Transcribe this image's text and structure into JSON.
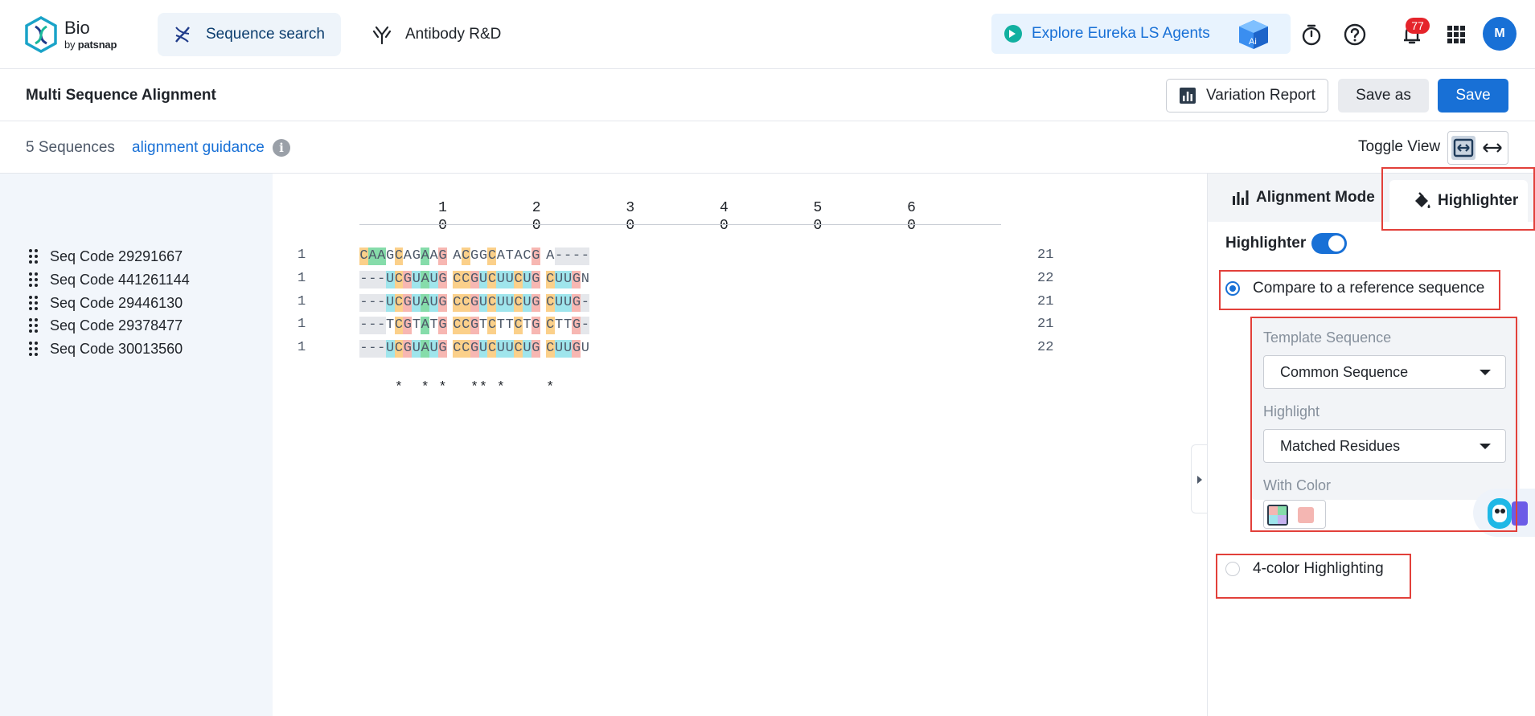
{
  "app": {
    "logo_text": "Bio",
    "logo_sub_prefix": "by",
    "logo_sub_brand": "patsnap"
  },
  "nav": {
    "tabs": [
      {
        "label": "Sequence search",
        "icon": "dna-icon",
        "active": true
      },
      {
        "label": "Antibody R&D",
        "icon": "antibody-icon",
        "active": false
      }
    ],
    "explore_label": "Explore Eureka LS Agents",
    "notifications_count": "77",
    "avatar_initial": "M"
  },
  "page": {
    "title": "Multi Sequence Alignment",
    "buttons": {
      "variation_report": "Variation Report",
      "save_as": "Save as",
      "save": "Save"
    },
    "sequence_count": "5 Sequences",
    "guidance_link": "alignment guidance",
    "toggle_view_label": "Toggle View"
  },
  "colors": {
    "accent": "#1870d6",
    "highlight_red": "#e2403a",
    "residue_A": "#86dcaa",
    "residue_C": "#fbd08a",
    "residue_G": "#f7b7b2",
    "residue_U": "#9fe5ec",
    "residue_T": "#9fe5ec",
    "residue_gap": "#e5e7eb"
  },
  "alignment": {
    "ruler_ticks": [
      {
        "top": "1",
        "bottom": "0"
      },
      {
        "top": "2",
        "bottom": "0"
      },
      {
        "top": "3",
        "bottom": "0"
      },
      {
        "top": "4",
        "bottom": "0"
      },
      {
        "top": "5",
        "bottom": "0"
      },
      {
        "top": "6",
        "bottom": "0"
      }
    ],
    "rows": [
      {
        "name": "Seq Code 29291667",
        "start": "1",
        "sequence": "CAAGCAGAAGACGGCATACGA----",
        "end": "21",
        "highlights": [
          "C",
          "A",
          "A",
          "",
          "C",
          "",
          "",
          "A",
          "",
          "G",
          "",
          "C",
          "",
          "",
          "C",
          "",
          "",
          "",
          "",
          "G",
          "",
          "-",
          "-",
          "-",
          "-"
        ]
      },
      {
        "name": "Seq Code 441261144",
        "start": "1",
        "sequence": "---UCGUAUGCCGUCUUCUGCUUGN",
        "end": "22",
        "highlights": [
          "-",
          "-",
          "-",
          "U",
          "C",
          "G",
          "U",
          "A",
          "U",
          "G",
          "C",
          "C",
          "G",
          "U",
          "C",
          "U",
          "U",
          "C",
          "U",
          "G",
          "C",
          "U",
          "U",
          "G",
          ""
        ]
      },
      {
        "name": "Seq Code 29446130",
        "start": "1",
        "sequence": "---UCGUAUGCCGUCUUCUGCUUG-",
        "end": "21",
        "highlights": [
          "-",
          "-",
          "-",
          "U",
          "C",
          "G",
          "U",
          "A",
          "U",
          "G",
          "C",
          "C",
          "G",
          "U",
          "C",
          "U",
          "U",
          "C",
          "U",
          "G",
          "C",
          "U",
          "U",
          "G",
          "-"
        ]
      },
      {
        "name": "Seq Code 29378477",
        "start": "1",
        "sequence": "---TCGTATGCCGTCTTCTGCTTG-",
        "end": "21",
        "highlights": [
          "-",
          "-",
          "-",
          "",
          "C",
          "G",
          "",
          "A",
          "",
          "G",
          "C",
          "C",
          "G",
          "",
          "C",
          "",
          "",
          "C",
          "",
          "G",
          "C",
          "",
          "",
          "G",
          "-"
        ]
      },
      {
        "name": "Seq Code 30013560",
        "start": "1",
        "sequence": "---UCGUAUGCCGUCUUCUGCUUGU",
        "end": "22",
        "highlights": [
          "-",
          "-",
          "-",
          "U",
          "C",
          "G",
          "U",
          "A",
          "U",
          "G",
          "C",
          "C",
          "G",
          "U",
          "C",
          "U",
          "U",
          "C",
          "U",
          "G",
          "C",
          "U",
          "U",
          "G",
          ""
        ]
      }
    ],
    "consensus": "    *  * *  ** *    *    "
  },
  "highlighter_panel": {
    "tabs": [
      {
        "label": "Alignment Mode",
        "icon": "bar-chart-icon"
      },
      {
        "label": "Highlighter",
        "icon": "paint-bucket-icon"
      }
    ],
    "toggle_label": "Highlighter",
    "toggle_on": true,
    "option_reference": "Compare to a reference sequence",
    "template_label": "Template Sequence",
    "template_value": "Common Sequence",
    "highlight_label": "Highlight",
    "highlight_value": "Matched Residues",
    "color_label": "With Color",
    "option_four_color": "4-color Highlighting"
  }
}
